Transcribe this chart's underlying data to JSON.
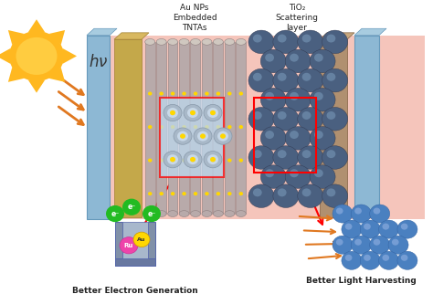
{
  "bg_color": "#ffffff",
  "sun_color": "#FFA500",
  "label_aunps": "Au NPs\nEmbedded\nTNTAs",
  "label_tio2": "TiO₂\nScattering\nlayer",
  "label_electron": "Better Electron Generation",
  "label_light": "Better Light Harvesting",
  "pink_bg": "#F5C5BB",
  "blue_panel": "#8DB8D4",
  "gold_panel": "#C4A84A",
  "brown_panel": "#B09070",
  "tube_color": "#B8AAAA",
  "tube_edge": "#908080",
  "sphere_color": "#4A6080",
  "sphere_highlight": "#6888AA",
  "red_box": "#FF0000",
  "green_e": "#22BB22",
  "au_color": "#FFD700",
  "ru_color": "#EE44AA",
  "arrow_orange": "#E07820",
  "sun_ray_color": "#E07820",
  "hv_color": "#333333"
}
